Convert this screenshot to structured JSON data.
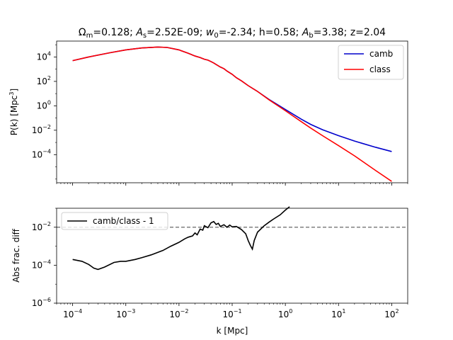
{
  "chart_data": [
    {
      "type": "line",
      "title": "Ωm=0.128; As=2.52E-09; w0=-2.34; h=0.58; Ab=3.38; z=2.04",
      "title_parts": {
        "omega_sym": "Ω",
        "omega_sub": "m",
        "omega_val": "=0.128; ",
        "as_sym": "A",
        "as_sub": "s",
        "as_val": "=2.52E-09; ",
        "w_sym": "w",
        "w_sub": "0",
        "w_val": "=-2.34; h=0.58; ",
        "ab_sym": "A",
        "ab_sub": "b",
        "ab_val": "=3.38; z=2.04"
      },
      "xlabel": "",
      "ylabel": "P(k) [Mpc³]",
      "ylabel_parts": {
        "base": "P(k) [Mpc",
        "sup": "3",
        "end": "]"
      },
      "x_scale": "log",
      "y_scale": "log",
      "xlim": [
        5e-05,
        200
      ],
      "ylim": [
        5e-07,
        200000
      ],
      "yticks": [
        {
          "base": "10",
          "exp": "4"
        },
        {
          "base": "10",
          "exp": "2"
        },
        {
          "base": "10",
          "exp": "0"
        },
        {
          "base": "10",
          "exp": "−2"
        },
        {
          "base": "10",
          "exp": "−4"
        }
      ],
      "ytick_values": [
        10000,
        100,
        1,
        0.01,
        0.0001
      ],
      "legend_position": "top-right",
      "series": [
        {
          "name": "camb",
          "color": "#0000cc",
          "points": [
            [
              0.0001,
              5000
            ],
            [
              0.0002,
              10000
            ],
            [
              0.0005,
              22000
            ],
            [
              0.001,
              38000
            ],
            [
              0.002,
              55000
            ],
            [
              0.004,
              65000
            ],
            [
              0.006,
              60000
            ],
            [
              0.01,
              38000
            ],
            [
              0.015,
              20000
            ],
            [
              0.02,
              12000
            ],
            [
              0.025,
              9000
            ],
            [
              0.03,
              6500
            ],
            [
              0.035,
              5500
            ],
            [
              0.04,
              4200
            ],
            [
              0.045,
              3200
            ],
            [
              0.05,
              2400
            ],
            [
              0.06,
              1500
            ],
            [
              0.07,
              1100
            ],
            [
              0.08,
              700
            ],
            [
              0.1,
              380
            ],
            [
              0.12,
              200
            ],
            [
              0.15,
              110
            ],
            [
              0.2,
              45
            ],
            [
              0.3,
              15
            ],
            [
              0.5,
              3.2
            ],
            [
              1,
              0.5
            ],
            [
              2,
              0.08
            ],
            [
              3,
              0.03
            ],
            [
              5,
              0.011
            ],
            [
              10,
              0.0036
            ],
            [
              20,
              0.0013
            ],
            [
              50,
              0.0004
            ],
            [
              100,
              0.00018
            ]
          ]
        },
        {
          "name": "class",
          "color": "#ff0000",
          "points": [
            [
              0.0001,
              5000
            ],
            [
              0.0002,
              10000
            ],
            [
              0.0005,
              22000
            ],
            [
              0.001,
              38000
            ],
            [
              0.002,
              55000
            ],
            [
              0.004,
              65000
            ],
            [
              0.006,
              60000
            ],
            [
              0.01,
              38000
            ],
            [
              0.015,
              20000
            ],
            [
              0.02,
              12000
            ],
            [
              0.025,
              9000
            ],
            [
              0.03,
              6500
            ],
            [
              0.035,
              5500
            ],
            [
              0.04,
              4200
            ],
            [
              0.045,
              3200
            ],
            [
              0.05,
              2400
            ],
            [
              0.06,
              1500
            ],
            [
              0.07,
              1100
            ],
            [
              0.08,
              700
            ],
            [
              0.1,
              380
            ],
            [
              0.12,
              200
            ],
            [
              0.15,
              110
            ],
            [
              0.2,
              45
            ],
            [
              0.3,
              15
            ],
            [
              0.5,
              3
            ],
            [
              1,
              0.4
            ],
            [
              2,
              0.05
            ],
            [
              3,
              0.015
            ],
            [
              5,
              0.0036
            ],
            [
              10,
              0.00055
            ],
            [
              20,
              8e-05
            ],
            [
              50,
              5e-06
            ],
            [
              100,
              6.5e-07
            ]
          ]
        }
      ]
    },
    {
      "type": "line",
      "title": "",
      "xlabel": "k [Mpc]",
      "ylabel": "Abs frac. diff",
      "x_scale": "log",
      "y_scale": "log",
      "xlim": [
        5e-05,
        200
      ],
      "ylim": [
        1e-06,
        0.1
      ],
      "xticks": [
        {
          "base": "10",
          "exp": "−4"
        },
        {
          "base": "10",
          "exp": "−3"
        },
        {
          "base": "10",
          "exp": "−2"
        },
        {
          "base": "10",
          "exp": "−1"
        },
        {
          "base": "10",
          "exp": "0"
        },
        {
          "base": "10",
          "exp": "1"
        },
        {
          "base": "10",
          "exp": "2"
        }
      ],
      "xtick_values": [
        0.0001,
        0.001,
        0.01,
        0.1,
        1,
        10,
        100
      ],
      "yticks": [
        {
          "base": "10",
          "exp": "−2"
        },
        {
          "base": "10",
          "exp": "−4"
        },
        {
          "base": "10",
          "exp": "−6"
        }
      ],
      "ytick_values": [
        0.01,
        0.0001,
        1e-06
      ],
      "reference_line": {
        "y": 0.01,
        "style": "dashed",
        "color": "#808080"
      },
      "legend_position": "top-left",
      "series": [
        {
          "name": "camb/class - 1",
          "color": "#000000",
          "points": [
            [
              0.0001,
              0.0002
            ],
            [
              0.00015,
              0.00016
            ],
            [
              0.0002,
              0.00011
            ],
            [
              0.00025,
              7e-05
            ],
            [
              0.0003,
              6e-05
            ],
            [
              0.0004,
              8e-05
            ],
            [
              0.0006,
              0.00014
            ],
            [
              0.0008,
              0.00016
            ],
            [
              0.001,
              0.00016
            ],
            [
              0.0015,
              0.0002
            ],
            [
              0.002,
              0.00025
            ],
            [
              0.003,
              0.00035
            ],
            [
              0.005,
              0.0006
            ],
            [
              0.007,
              0.001
            ],
            [
              0.01,
              0.0016
            ],
            [
              0.013,
              0.0025
            ],
            [
              0.015,
              0.003
            ],
            [
              0.018,
              0.0035
            ],
            [
              0.02,
              0.005
            ],
            [
              0.022,
              0.004
            ],
            [
              0.025,
              0.008
            ],
            [
              0.028,
              0.007
            ],
            [
              0.03,
              0.012
            ],
            [
              0.035,
              0.0095
            ],
            [
              0.04,
              0.017
            ],
            [
              0.045,
              0.02
            ],
            [
              0.05,
              0.014
            ],
            [
              0.055,
              0.016
            ],
            [
              0.06,
              0.011
            ],
            [
              0.07,
              0.0135
            ],
            [
              0.08,
              0.01
            ],
            [
              0.09,
              0.013
            ],
            [
              0.1,
              0.0105
            ],
            [
              0.12,
              0.011
            ],
            [
              0.15,
              0.0075
            ],
            [
              0.18,
              0.0045
            ],
            [
              0.2,
              0.002
            ],
            [
              0.22,
              0.0011
            ],
            [
              0.24,
              0.0007
            ],
            [
              0.26,
              0.002
            ],
            [
              0.3,
              0.0055
            ],
            [
              0.4,
              0.012
            ],
            [
              0.5,
              0.019
            ],
            [
              0.6,
              0.027
            ],
            [
              0.8,
              0.045
            ],
            [
              1,
              0.08
            ],
            [
              1.2,
              0.12
            ]
          ]
        }
      ]
    }
  ]
}
